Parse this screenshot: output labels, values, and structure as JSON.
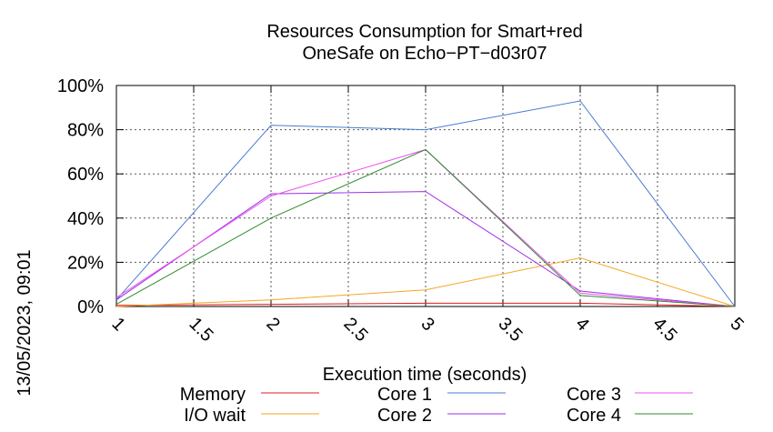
{
  "chart_data": {
    "type": "line",
    "title": [
      "Resources Consumption for Smart+red",
      "OneSafe on Echo−PT−d03r07"
    ],
    "xlabel": "Execution time (seconds)",
    "ylabel": "",
    "timestamp": "13/05/2023, 09:01",
    "x_ticks": [
      "1",
      "1.5",
      "2",
      "2.5",
      "3",
      "3.5",
      "4",
      "4.5",
      "5"
    ],
    "y_ticks": [
      "0%",
      "20%",
      "40%",
      "60%",
      "80%",
      "100%"
    ],
    "xlim": [
      1,
      5
    ],
    "ylim": [
      0,
      100
    ],
    "grid": true,
    "legend_position": "bottom",
    "x": [
      1,
      2,
      3,
      4,
      5
    ],
    "series": [
      {
        "name": "Memory",
        "color": "#e41a1c",
        "values": [
          0.5,
          1,
          1.5,
          1.5,
          0
        ]
      },
      {
        "name": "I/O wait",
        "color": "#f5a623",
        "values": [
          0,
          3,
          7.5,
          22,
          0
        ]
      },
      {
        "name": "Core 1",
        "color": "#4a7bd1",
        "values": [
          3,
          82,
          80,
          93,
          0
        ]
      },
      {
        "name": "Core 2",
        "color": "#9b30e8",
        "values": [
          3,
          51,
          52,
          7,
          0
        ]
      },
      {
        "name": "Core 3",
        "color": "#f050f0",
        "values": [
          4,
          50,
          71,
          6,
          0
        ]
      },
      {
        "name": "Core 4",
        "color": "#2e8b2e",
        "values": [
          1,
          40,
          71,
          5,
          0
        ]
      }
    ]
  }
}
